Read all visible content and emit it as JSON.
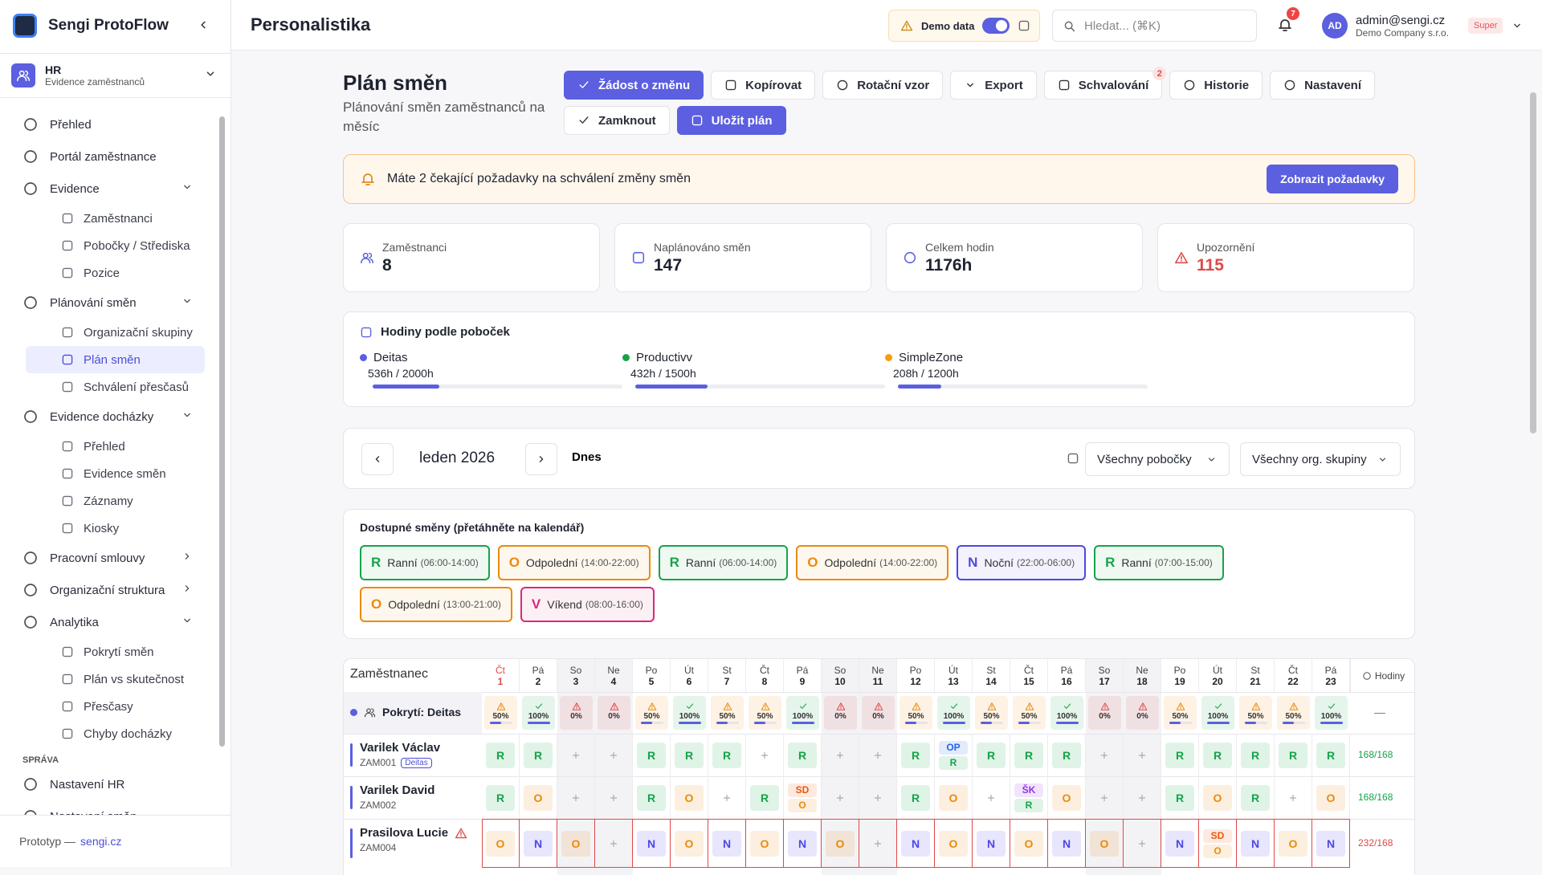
{
  "sidebar": {
    "brand": "Sengi ProtoFlow",
    "module": {
      "title": "HR",
      "subtitle": "Evidence zaměstnanců"
    },
    "nav": [
      {
        "label": "Přehled"
      },
      {
        "label": "Portál zaměstnance"
      },
      {
        "label": "Evidence",
        "expanded": true,
        "children": [
          {
            "label": "Zaměstnanci"
          },
          {
            "label": "Pobočky / Střediska"
          },
          {
            "label": "Pozice"
          }
        ]
      },
      {
        "label": "Plánování směn",
        "expanded": true,
        "children": [
          {
            "label": "Organizační skupiny"
          },
          {
            "label": "Plán směn",
            "active": true
          },
          {
            "label": "Schválení přesčasů"
          }
        ]
      },
      {
        "label": "Evidence docházky",
        "expanded": true,
        "children": [
          {
            "label": "Přehled"
          },
          {
            "label": "Evidence směn"
          },
          {
            "label": "Záznamy"
          },
          {
            "label": "Kiosky"
          }
        ]
      },
      {
        "label": "Pracovní smlouvy",
        "expanded": false
      },
      {
        "label": "Organizační struktura",
        "expanded": false
      },
      {
        "label": "Analytika",
        "expanded": true,
        "children": [
          {
            "label": "Pokrytí směn"
          },
          {
            "label": "Plán vs skutečnost"
          },
          {
            "label": "Přesčasy"
          },
          {
            "label": "Chyby docházky"
          }
        ]
      }
    ],
    "section": "SPRÁVA",
    "admin_nav": [
      {
        "label": "Nastavení HR"
      },
      {
        "label": "Nastavení směn"
      }
    ],
    "footer": {
      "text": "Prototyp —",
      "link": "sengi.cz"
    }
  },
  "header": {
    "title": "Personalistika",
    "demo_toggle": {
      "label": "Demo data",
      "on": true
    },
    "search_placeholder": "Hledat... (⌘K)",
    "notifications": 7,
    "user": {
      "initials": "AD",
      "email": "admin@sengi.cz",
      "company": "Demo Company s.r.o.",
      "role": "Super"
    }
  },
  "page": {
    "title": "Plán směn",
    "subtitle": "Plánování směn zaměstnanců na měsíc",
    "actions": [
      [
        {
          "label": "Žádost o změnu",
          "primary": true
        },
        {
          "label": "Kopírovat"
        },
        {
          "label": "Rotační vzor"
        },
        {
          "label": "Export"
        },
        {
          "label": "Schvalování",
          "badge": 2
        },
        {
          "label": "Historie"
        },
        {
          "label": "Nastavení"
        }
      ],
      [
        {
          "label": "Zamknout"
        },
        {
          "label": "Uložit plán",
          "primary": true
        }
      ]
    ],
    "alert": {
      "text": "Máte 2 čekající požadavky na schválení změny směn",
      "button": "Zobrazit požadavky"
    },
    "stats": [
      {
        "label": "Zaměstnanci",
        "value": 8
      },
      {
        "label": "Naplánováno směn",
        "value": 147
      },
      {
        "label": "Celkem hodin",
        "value": "1176h"
      },
      {
        "label": "Upozornění",
        "value": 115,
        "alert": true
      }
    ],
    "branches": {
      "title": "Hodiny podle poboček",
      "items": [
        {
          "name": "Deitas",
          "color": "#5b5fe0",
          "hours": 536,
          "capacity": 2000,
          "label": "536h / 2000h"
        },
        {
          "name": "Productivv",
          "color": "#16a34a",
          "hours": 432,
          "capacity": 1500,
          "label": "432h / 1500h"
        },
        {
          "name": "SimpleZone",
          "color": "#f59e0b",
          "hours": 208,
          "capacity": 1200,
          "label": "208h / 1200h"
        }
      ]
    },
    "period": {
      "month": "leden 2026",
      "today": "Dnes",
      "filters": [
        "Všechny pobočky",
        "Všechny org. skupiny"
      ]
    },
    "shifts": {
      "title": "Dostupné směny (přetáhněte na kalendář)",
      "items": [
        {
          "code": "R",
          "name": "Ranní",
          "time": "(06:00-14:00)"
        },
        {
          "code": "O",
          "name": "Odpolední",
          "time": "(14:00-22:00)"
        },
        {
          "code": "R",
          "name": "Ranní",
          "time": "(06:00-14:00)"
        },
        {
          "code": "O",
          "name": "Odpolední",
          "time": "(14:00-22:00)"
        },
        {
          "code": "N",
          "name": "Noční",
          "time": "(22:00-06:00)"
        },
        {
          "code": "R",
          "name": "Ranní",
          "time": "(07:00-15:00)"
        },
        {
          "code": "O",
          "name": "Odpolední",
          "time": "(13:00-21:00)"
        },
        {
          "code": "V",
          "name": "Víkend",
          "time": "(08:00-16:00)"
        }
      ]
    },
    "schedule": {
      "employee_header": "Zaměstnanec",
      "hours_header": "Hodiny",
      "code_colors": {
        "R": "#16a34a",
        "O": "#ea8a0c",
        "N": "#4f46e5",
        "V": "#db2777",
        "OP": "#2563eb",
        "SD": "#ea580c",
        "ŠK": "#9333ea"
      },
      "days": [
        {
          "dow": "Čt",
          "day": 1,
          "today": true
        },
        {
          "dow": "Pá",
          "day": 2
        },
        {
          "dow": "So",
          "day": 3,
          "weekend": true
        },
        {
          "dow": "Ne",
          "day": 4,
          "weekend": true
        },
        {
          "dow": "Po",
          "day": 5
        },
        {
          "dow": "Út",
          "day": 6
        },
        {
          "dow": "St",
          "day": 7
        },
        {
          "dow": "Čt",
          "day": 8
        },
        {
          "dow": "Pá",
          "day": 9
        },
        {
          "dow": "So",
          "day": 10,
          "weekend": true
        },
        {
          "dow": "Ne",
          "day": 11,
          "weekend": true
        },
        {
          "dow": "Po",
          "day": 12
        },
        {
          "dow": "Út",
          "day": 13
        },
        {
          "dow": "St",
          "day": 14
        },
        {
          "dow": "Čt",
          "day": 15
        },
        {
          "dow": "Pá",
          "day": 16
        },
        {
          "dow": "So",
          "day": 17,
          "weekend": true
        },
        {
          "dow": "Ne",
          "day": 18,
          "weekend": true
        },
        {
          "dow": "Po",
          "day": 19
        },
        {
          "dow": "Út",
          "day": 20
        },
        {
          "dow": "St",
          "day": 21
        },
        {
          "dow": "Čt",
          "day": 22
        },
        {
          "dow": "Pá",
          "day": 23
        }
      ],
      "coverage": {
        "label": "Pokrytí: Deitas",
        "hours": "—",
        "values": [
          50,
          100,
          0,
          0,
          50,
          100,
          50,
          50,
          100,
          0,
          0,
          50,
          100,
          50,
          50,
          100,
          0,
          0,
          50,
          100,
          50,
          50,
          100
        ],
        "value_labels": [
          "50%",
          "100%",
          "0%",
          "0%",
          "50%",
          "100%",
          "50%",
          "50%",
          "100%",
          "0%",
          "0%",
          "50%",
          "100%",
          "50%",
          "50%",
          "100%",
          "0%",
          "0%",
          "50%",
          "100%",
          "50%",
          "50%",
          "100%"
        ]
      },
      "employees": [
        {
          "name": "Varilek Václav",
          "id": "ZAM001",
          "tag": "Deitas",
          "hours": "168/168",
          "shifts": [
            "R",
            "R",
            null,
            null,
            "R",
            "R",
            "R",
            null,
            "R",
            null,
            null,
            "R",
            [
              "OP",
              "R"
            ],
            "R",
            "R",
            "R",
            null,
            null,
            "R",
            "R",
            "R",
            "R",
            "R"
          ]
        },
        {
          "name": "Varilek David",
          "id": "ZAM002",
          "hours": "168/168",
          "shifts": [
            "R",
            "O",
            null,
            null,
            "R",
            "O",
            null,
            "R",
            [
              "SD",
              "O"
            ],
            null,
            null,
            "R",
            "O",
            null,
            [
              "ŠK",
              "R"
            ],
            "O",
            null,
            null,
            "R",
            "O",
            "R",
            null,
            "O"
          ]
        },
        {
          "name": "Prasilova Lucie",
          "id": "ZAM004",
          "hours": "232/168",
          "warning": true,
          "shifts": [
            "O",
            "N",
            "O",
            null,
            "N",
            "O",
            "N",
            "O",
            "N",
            "O",
            null,
            "N",
            "O",
            "N",
            "O",
            "N",
            "O",
            null,
            "N",
            [
              "SD",
              "O"
            ],
            "N",
            "O",
            "N"
          ]
        }
      ]
    }
  }
}
